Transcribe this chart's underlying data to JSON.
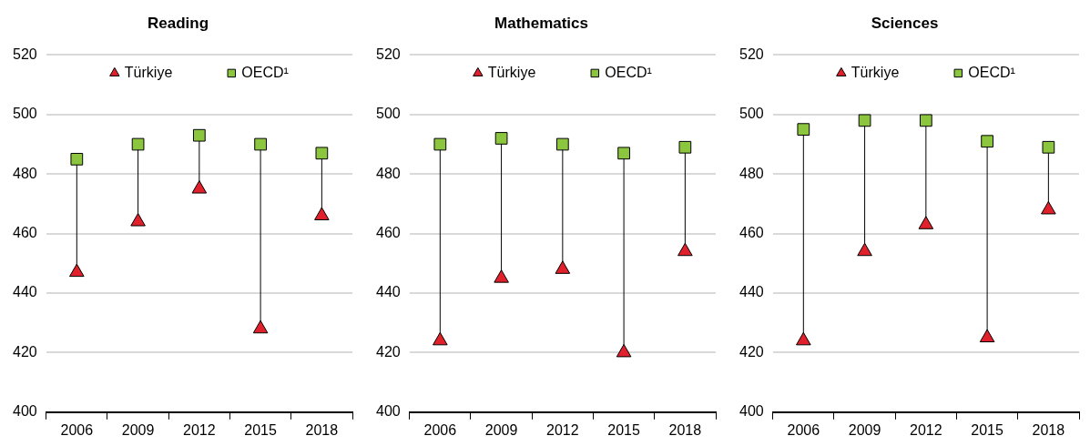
{
  "chart_data": [
    {
      "type": "scatter",
      "title": "Reading",
      "categories": [
        "2006",
        "2009",
        "2012",
        "2015",
        "2018"
      ],
      "ylim": [
        400,
        520
      ],
      "yticks": [
        400,
        420,
        440,
        460,
        480,
        500,
        520
      ],
      "grid": "y",
      "legend": "top",
      "series": [
        {
          "name": "Türkiye",
          "color": "#e0202a",
          "marker": "triangle",
          "values": [
            447,
            464,
            475,
            428,
            466
          ]
        },
        {
          "name": "OECD¹",
          "color": "#8cc63f",
          "marker": "square",
          "values": [
            485,
            490,
            493,
            490,
            487
          ]
        }
      ]
    },
    {
      "type": "scatter",
      "title": "Mathematics",
      "categories": [
        "2006",
        "2009",
        "2012",
        "2015",
        "2018"
      ],
      "ylim": [
        400,
        520
      ],
      "yticks": [
        400,
        420,
        440,
        460,
        480,
        500,
        520
      ],
      "grid": "y",
      "legend": "top",
      "series": [
        {
          "name": "Türkiye",
          "color": "#e0202a",
          "marker": "triangle",
          "values": [
            424,
            445,
            448,
            420,
            454
          ]
        },
        {
          "name": "OECD¹",
          "color": "#8cc63f",
          "marker": "square",
          "values": [
            490,
            492,
            490,
            487,
            489
          ]
        }
      ]
    },
    {
      "type": "scatter",
      "title": "Sciences",
      "categories": [
        "2006",
        "2009",
        "2012",
        "2015",
        "2018"
      ],
      "ylim": [
        400,
        520
      ],
      "yticks": [
        400,
        420,
        440,
        460,
        480,
        500,
        520
      ],
      "grid": "y",
      "legend": "top",
      "series": [
        {
          "name": "Türkiye",
          "color": "#e0202a",
          "marker": "triangle",
          "values": [
            424,
            454,
            463,
            425,
            468
          ]
        },
        {
          "name": "OECD¹",
          "color": "#8cc63f",
          "marker": "square",
          "values": [
            495,
            498,
            498,
            491,
            489
          ]
        }
      ]
    }
  ]
}
